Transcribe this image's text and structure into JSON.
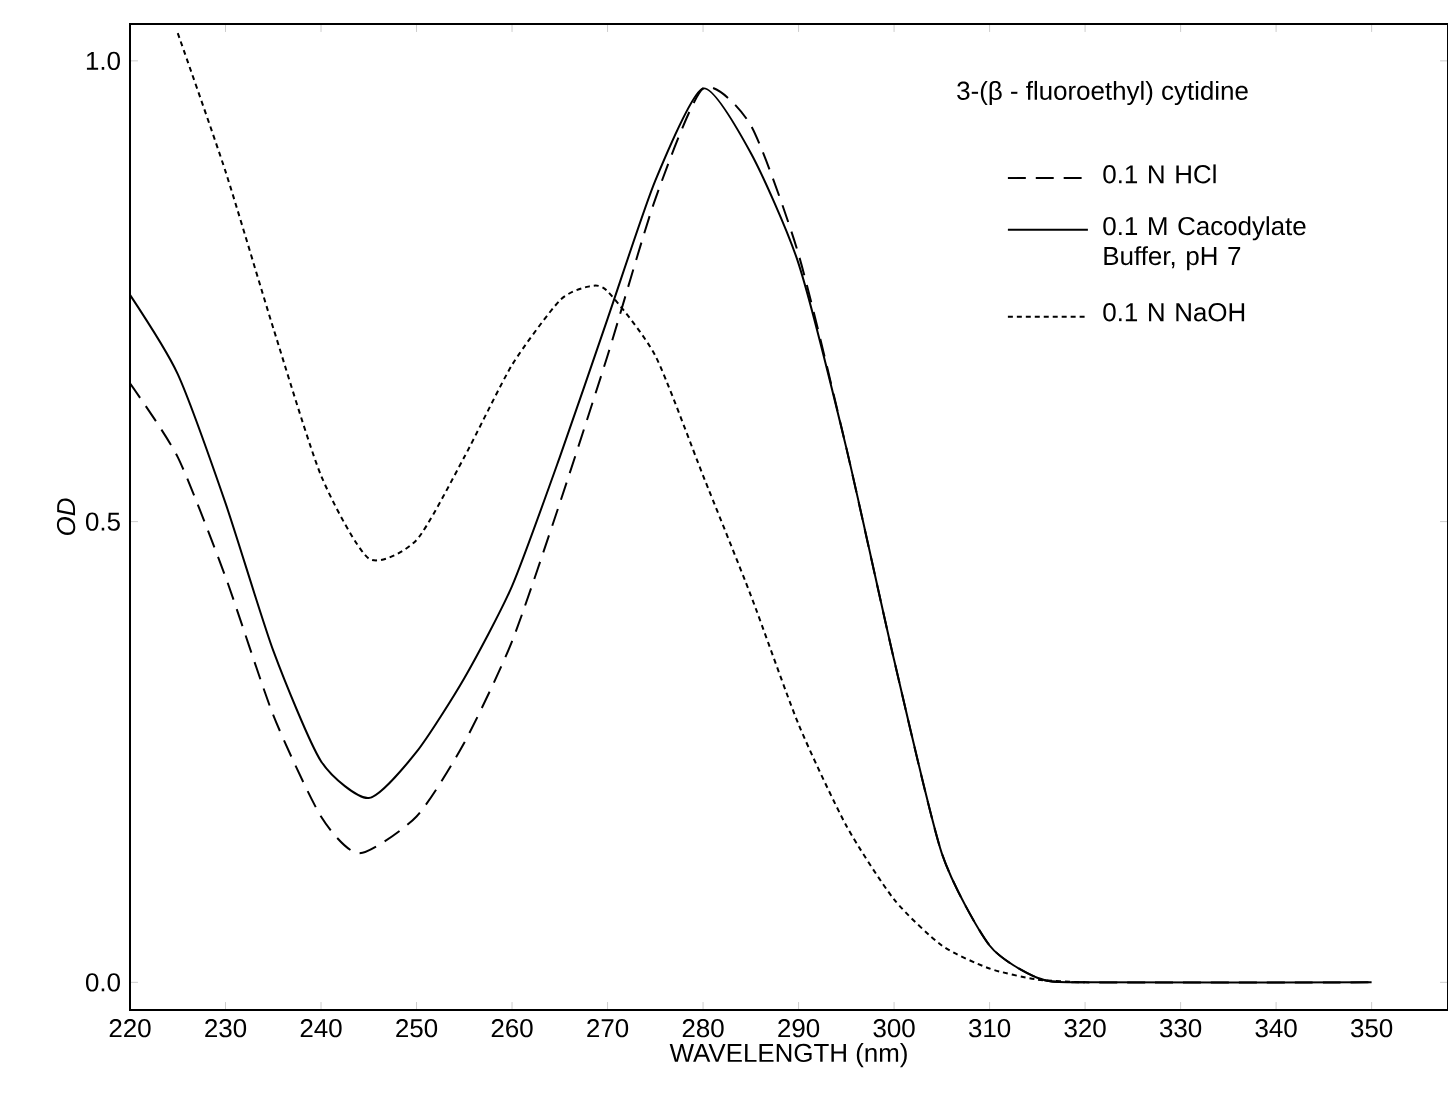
{
  "chart_data": {
    "type": "line",
    "xlabel": "WAVELENGTH (nm)",
    "ylabel": "OD",
    "legend_title": "3-(β - fluoroethyl) cytidine",
    "legend": "top right",
    "grid": false,
    "marker": "none",
    "xlim": [
      220,
      358
    ],
    "ylim": [
      -0.03,
      1.04
    ],
    "xticks": [
      220,
      230,
      240,
      250,
      260,
      270,
      280,
      290,
      300,
      310,
      320,
      330,
      340,
      350
    ],
    "yticks": [
      {
        "value": 0,
        "label": "0.0"
      },
      {
        "value": 0.5,
        "label": "0.5"
      },
      {
        "value": 1,
        "label": "1.0"
      }
    ],
    "series": [
      {
        "name": "0.1 N HCl",
        "color": "#000000",
        "line_style": "dashed",
        "x": [
          220,
          225,
          230,
          235,
          240,
          244,
          250,
          255,
          260,
          265,
          270,
          275,
          280,
          285,
          290,
          295,
          300,
          305,
          310,
          315,
          320,
          350
        ],
        "values": [
          0.65,
          0.57,
          0.44,
          0.29,
          0.18,
          0.14,
          0.18,
          0.26,
          0.37,
          0.52,
          0.68,
          0.85,
          0.97,
          0.93,
          0.79,
          0.58,
          0.35,
          0.14,
          0.04,
          0.005,
          0,
          0
        ]
      },
      {
        "name": "0.1 M Cacodylate Buffer, pH 7",
        "color": "#000000",
        "line_style": "solid",
        "x": [
          220,
          225,
          230,
          235,
          240,
          245,
          250,
          255,
          260,
          265,
          270,
          275,
          280,
          285,
          290,
          295,
          300,
          305,
          310,
          315,
          320,
          350
        ],
        "values": [
          0.746,
          0.66,
          0.52,
          0.36,
          0.24,
          0.2,
          0.25,
          0.33,
          0.43,
          0.57,
          0.72,
          0.87,
          0.97,
          0.9,
          0.78,
          0.58,
          0.35,
          0.14,
          0.04,
          0.005,
          0,
          0
        ]
      },
      {
        "name": "0.1 N NaOH",
        "color": "#000000",
        "line_style": "dotted",
        "x": [
          225,
          230,
          235,
          240,
          245,
          250,
          255,
          260,
          265,
          268,
          270,
          275,
          280,
          285,
          290,
          295,
          300,
          305,
          310,
          315,
          320
        ],
        "values": [
          1.03,
          0.88,
          0.71,
          0.55,
          0.46,
          0.48,
          0.57,
          0.67,
          0.74,
          0.755,
          0.75,
          0.68,
          0.55,
          0.42,
          0.28,
          0.17,
          0.09,
          0.04,
          0.015,
          0.003,
          0
        ]
      }
    ]
  }
}
